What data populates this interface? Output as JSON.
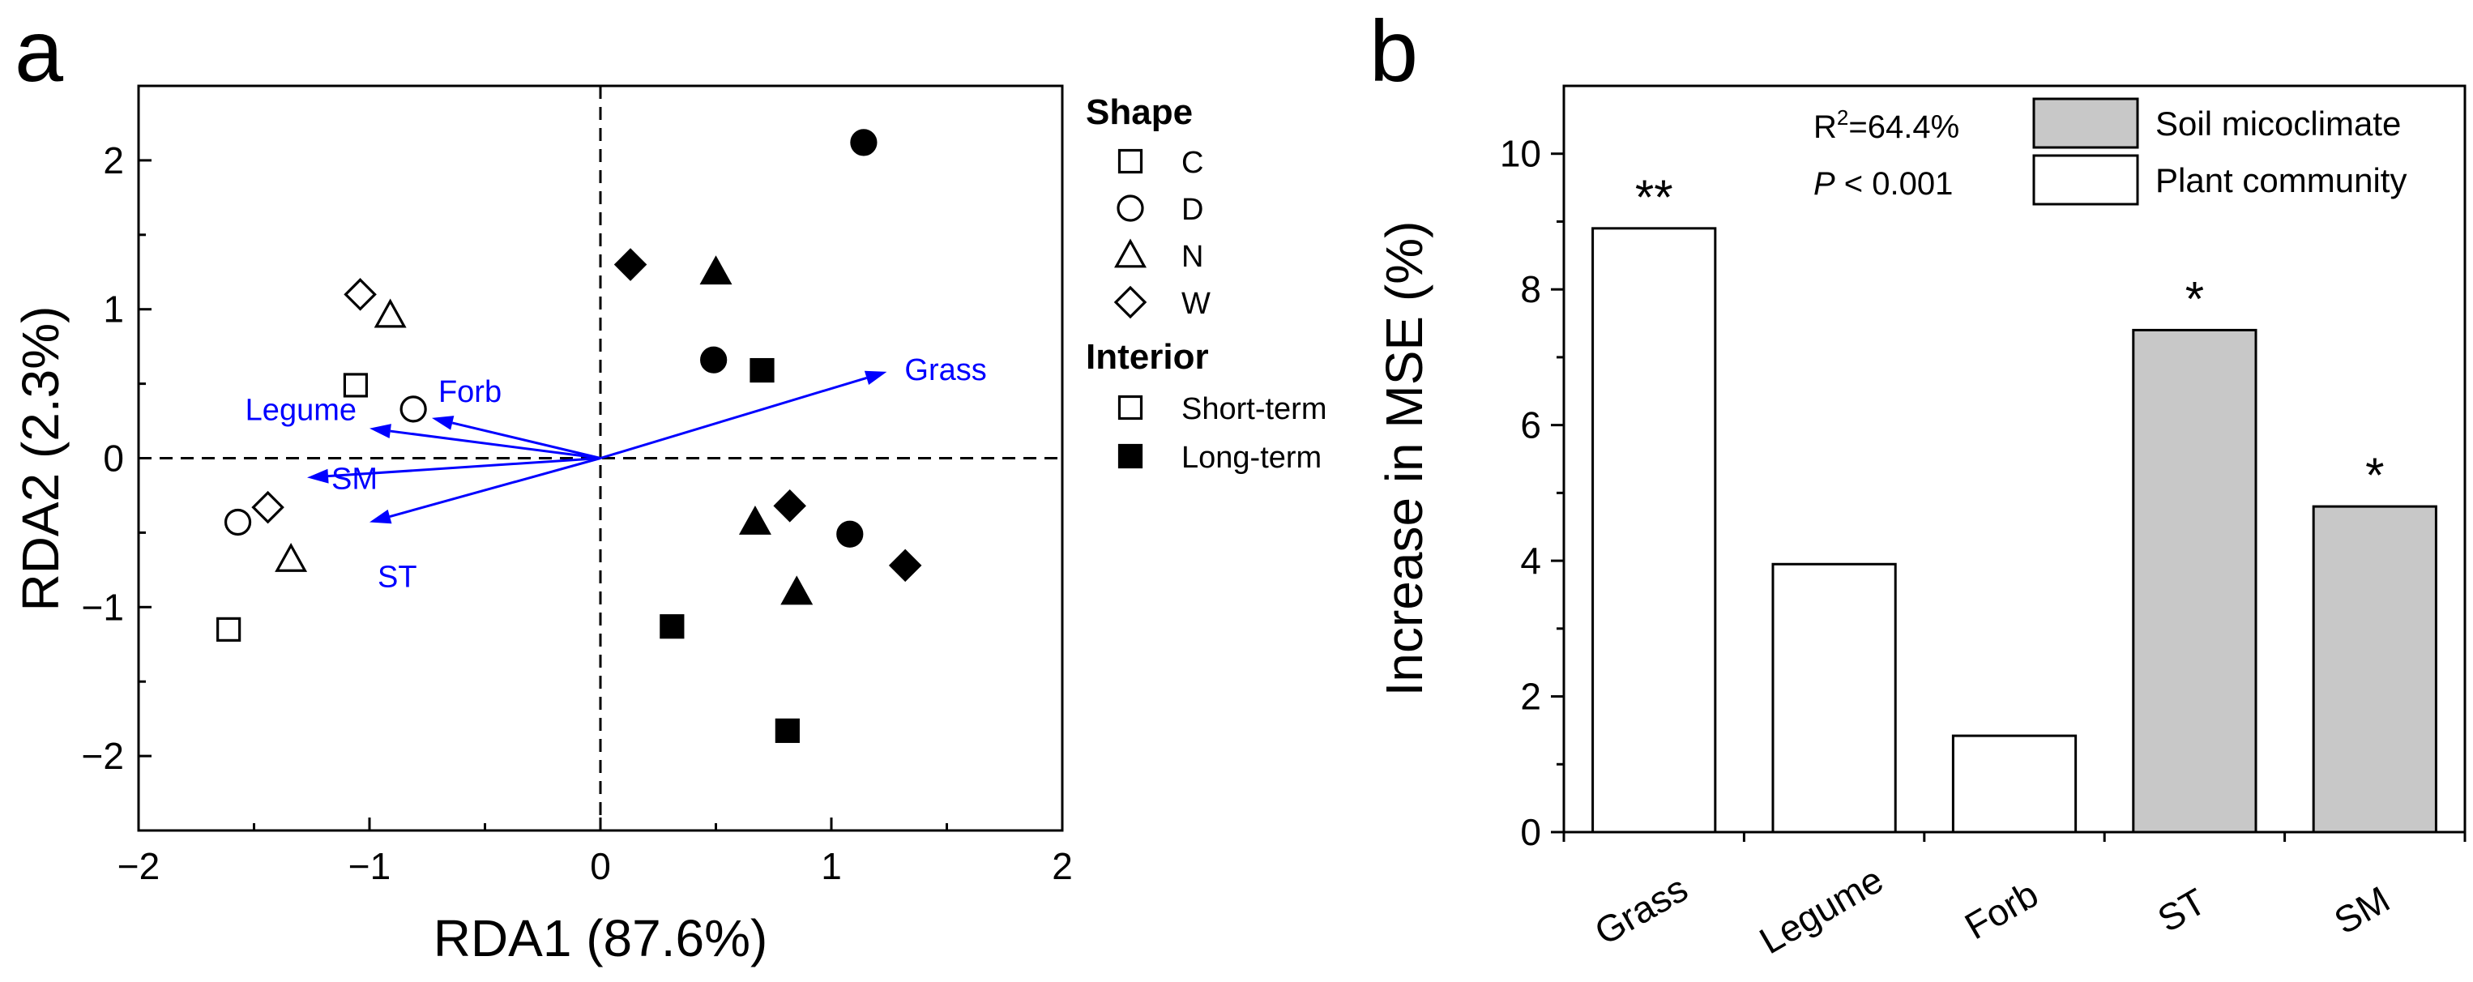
{
  "panels": {
    "a": "a",
    "b": "b"
  },
  "chart_data": [
    {
      "type": "scatter",
      "panel": "a",
      "xlabel": "RDA1 (87.6%)",
      "ylabel": "RDA2 (2.3%)",
      "xlim": [
        -2,
        2
      ],
      "ylim": [
        -2.5,
        2.5
      ],
      "xticks": [
        -2,
        -1,
        0,
        1,
        2
      ],
      "yticks": [
        -2,
        -1,
        0,
        1,
        2
      ],
      "xtick_labels": [
        "−2",
        "−1",
        "0",
        "1",
        "2"
      ],
      "ytick_labels": [
        "−2",
        "−1",
        "0",
        "1",
        "2"
      ],
      "legend": {
        "shape_title": "Shape",
        "shapes": [
          {
            "label": "C",
            "shape": "square"
          },
          {
            "label": "D",
            "shape": "circle"
          },
          {
            "label": "N",
            "shape": "triangle"
          },
          {
            "label": "W",
            "shape": "diamond"
          }
        ],
        "interior_title": "Interior",
        "interiors": [
          {
            "label": "Short-term",
            "filled": false
          },
          {
            "label": "Long-term",
            "filled": true
          }
        ]
      },
      "points": [
        {
          "x": 1.14,
          "y": 2.12,
          "shape": "circle",
          "filled": true
        },
        {
          "x": 0.13,
          "y": 1.3,
          "shape": "diamond",
          "filled": true
        },
        {
          "x": 0.5,
          "y": 1.25,
          "shape": "triangle",
          "filled": true
        },
        {
          "x": 0.49,
          "y": 0.66,
          "shape": "circle",
          "filled": true
        },
        {
          "x": 0.7,
          "y": 0.59,
          "shape": "square",
          "filled": true
        },
        {
          "x": 0.82,
          "y": -0.32,
          "shape": "diamond",
          "filled": true
        },
        {
          "x": 0.67,
          "y": -0.43,
          "shape": "triangle",
          "filled": true
        },
        {
          "x": 1.08,
          "y": -0.51,
          "shape": "circle",
          "filled": true
        },
        {
          "x": 1.32,
          "y": -0.72,
          "shape": "diamond",
          "filled": true
        },
        {
          "x": 0.85,
          "y": -0.9,
          "shape": "triangle",
          "filled": true
        },
        {
          "x": 0.31,
          "y": -1.13,
          "shape": "square",
          "filled": true
        },
        {
          "x": 0.81,
          "y": -1.83,
          "shape": "square",
          "filled": true
        },
        {
          "x": -1.04,
          "y": 1.1,
          "shape": "diamond",
          "filled": false
        },
        {
          "x": -0.91,
          "y": 0.96,
          "shape": "triangle",
          "filled": false
        },
        {
          "x": -1.06,
          "y": 0.49,
          "shape": "square",
          "filled": false
        },
        {
          "x": -0.81,
          "y": 0.33,
          "shape": "circle",
          "filled": false
        },
        {
          "x": -1.44,
          "y": -0.33,
          "shape": "diamond",
          "filled": false
        },
        {
          "x": -1.57,
          "y": -0.43,
          "shape": "circle",
          "filled": false
        },
        {
          "x": -1.34,
          "y": -0.68,
          "shape": "triangle",
          "filled": false
        },
        {
          "x": -1.61,
          "y": -1.15,
          "shape": "square",
          "filled": false
        }
      ],
      "vectors": [
        {
          "label": "Grass",
          "x": 1.24,
          "y": 0.58
        },
        {
          "label": "Forb",
          "x": -0.73,
          "y": 0.27
        },
        {
          "label": "Legume",
          "x": -1.0,
          "y": 0.2
        },
        {
          "label": "SM",
          "x": -1.27,
          "y": -0.13
        },
        {
          "label": "ST",
          "x": -1.0,
          "y": -0.43
        }
      ],
      "colors": {
        "vector": "#0000ff",
        "points": "#000000"
      }
    },
    {
      "type": "bar",
      "panel": "b",
      "ylabel": "Increase in MSE (%)",
      "ylim": [
        0,
        11
      ],
      "yticks": [
        0,
        2,
        4,
        6,
        8,
        10
      ],
      "ytick_labels": [
        "0",
        "2",
        "4",
        "6",
        "8",
        "10"
      ],
      "categories": [
        "Grass",
        "Legume",
        "Forb",
        "ST",
        "SM"
      ],
      "values": [
        8.9,
        3.95,
        1.42,
        7.4,
        4.8
      ],
      "groups": [
        "Plant community",
        "Plant community",
        "Plant community",
        "Soil micoclimate",
        "Soil micoclimate"
      ],
      "significance": [
        "**",
        "",
        "",
        "*",
        "*"
      ],
      "stats": {
        "r2_prefix": "R",
        "r2_sup": "2",
        "r2_suffix": "=64.4%",
        "p_italic": "P",
        "p_rest": " < 0.001"
      },
      "legend": [
        {
          "label": "Soil micoclimate",
          "color": "#c8c8c8"
        },
        {
          "label": "Plant community",
          "color": "#ffffff"
        }
      ]
    }
  ]
}
